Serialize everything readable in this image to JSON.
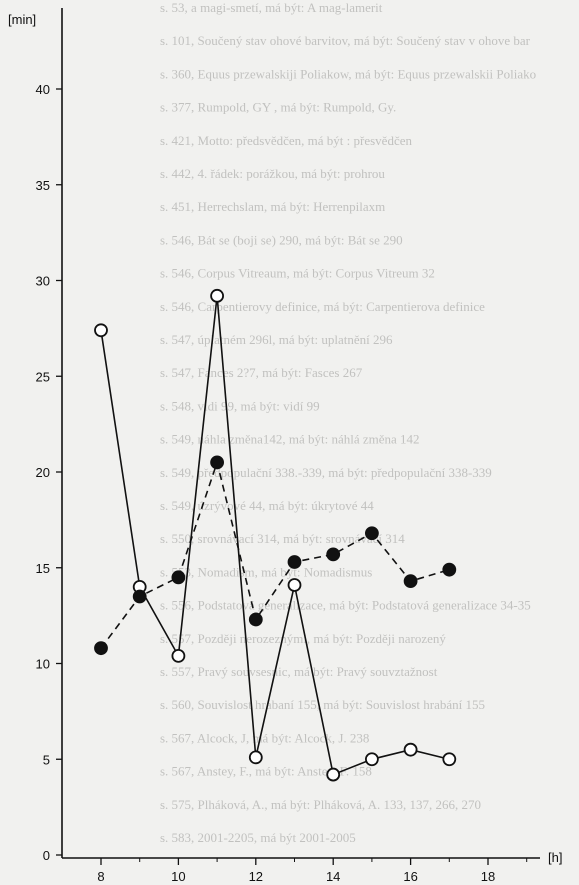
{
  "chart_data": {
    "type": "line",
    "xlabel": "[h]",
    "ylabel": "[min]",
    "xlim": [
      7,
      20
    ],
    "ylim": [
      0,
      42
    ],
    "x_ticks": [
      "8",
      "10",
      "12",
      "14",
      "16",
      "18"
    ],
    "y_ticks": [
      "0",
      "5",
      "10",
      "15",
      "20",
      "25",
      "30",
      "35",
      "40"
    ],
    "grid": false,
    "legend": "none",
    "series": [
      {
        "style": "solid line, open circles",
        "color": "#111111",
        "x": [
          8,
          9,
          10,
          11,
          12,
          13,
          14,
          15,
          16,
          17
        ],
        "y": [
          27.4,
          14.0,
          10.4,
          29.2,
          5.1,
          14.1,
          4.2,
          5.0,
          5.5,
          5.0
        ]
      },
      {
        "style": "dashed line, filled circles",
        "color": "#111111",
        "x": [
          8,
          9,
          10,
          11,
          12,
          13,
          14,
          15,
          16,
          17
        ],
        "y": [
          10.8,
          13.5,
          14.5,
          20.5,
          12.3,
          15.3,
          15.7,
          16.8,
          14.3,
          14.9
        ]
      }
    ]
  },
  "background_bleed_text": [
    "s. 53,   a magi-smetí, má být: A mag-lamerit",
    "s. 101,  Součený stav ohové barvitov, má být: Součený  stav v  ohove bar",
    "s. 360,  Equus przewalskiji Poliakow, má být:  Equus przewalskii Poliako",
    "s. 377,  Rumpold, GY , má být:  Rumpold, Gy.",
    "s. 421,  Motto: předsvědčen, má být : přesvědčen",
    "s. 442,  4. řádek: porážkou, má být:  prohrou",
    "s. 451,  Herrechslam, má být:  Herrenpilaxm",
    "s. 546,  Bát se (boji se) 290, má být:  Bát se 290",
    "s. 546,  Corpus Vitreaum, má být:  Corpus Vitreum 32",
    "s. 546,  Carpentierovy definice, má být:  Carpentierova definice",
    "s. 547,  úplatném 296l, má být:  uplatnění 296",
    "s. 547,  Fances 2?7, má být:  Fasces 267",
    "s. 548,  vidi 99, má být:  vidí 99",
    "s. 549,  náhla změna142, má být:  náhlá změna 142",
    "s. 549,  předpopulační 338.-339, má být:  předpopulační 338-339",
    "s. 549,  úzrývové 44, má být: úkrytové 44",
    "s. 550,  srovnávací 314, má být: srovnávací 314",
    "s. 553,  Nomadism, má být: Nomadismus",
    "s. 556,  Podstatová generalizace, má být: Podstatová generalizace 34-35",
    "s. 557,  Později nerozeznými, má být: Později narozený",
    "s. 557,  Pravý souvsesnic, má být:  Pravý souvztažnost",
    "s. 560,  Souvislost hrabaní 155, má být: Souvislost hrabání 155",
    "s. 567,  Alcock, J, má být: Alcock, J. 238",
    "s. 567,  Anstey, F., má být: Anstey, F. 158",
    "s. 575,  Plháková, A., má být:  Plháková, A. 133, 137, 266, 270",
    "s. 583,  2001-2205, má být 2001-2005"
  ]
}
